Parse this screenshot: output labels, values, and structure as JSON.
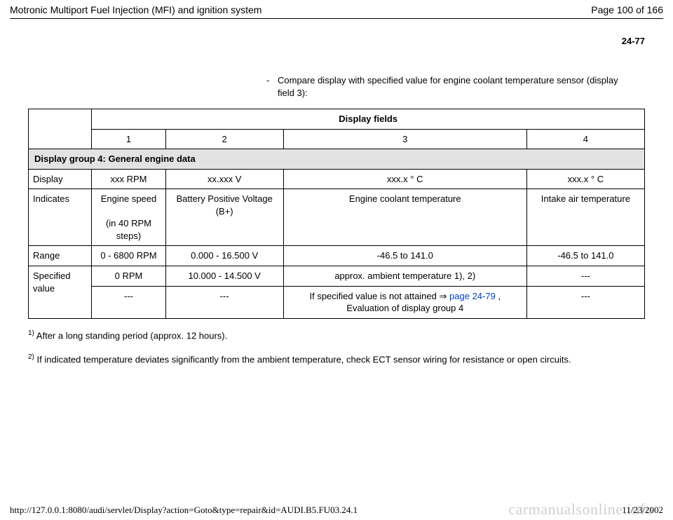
{
  "header": {
    "title": "Motronic Multiport Fuel Injection (MFI) and ignition system",
    "page_of": "Page 100 of 166"
  },
  "page_ref": "24-77",
  "instruction": {
    "dash": "-",
    "text": "Compare display with specified value for engine coolant temperature sensor (display field 3):"
  },
  "table": {
    "display_fields_label": "Display fields",
    "columns": {
      "c1": "1",
      "c2": "2",
      "c3": "3",
      "c4": "4"
    },
    "group_row": "Display group 4: General engine data",
    "rows": {
      "display": {
        "label": "Display",
        "c1": "xxx RPM",
        "c2": "xx.xxx V",
        "c3": "xxx.x  ° C",
        "c4": "xxx.x  ° C"
      },
      "indicates": {
        "label": "Indicates",
        "c1_line1": "Engine speed",
        "c1_line2": "(in 40 RPM steps)",
        "c2": "Battery Positive Voltage (B+)",
        "c3": "Engine coolant temperature",
        "c4": "Intake air temperature"
      },
      "range": {
        "label": "Range",
        "c1": "0 - 6800 RPM",
        "c2": "0.000 - 16.500 V",
        "c3": "-46.5 to 141.0",
        "c4": "-46.5 to 141.0"
      },
      "specified": {
        "label": "Specified value",
        "c1": "0 RPM",
        "c2": "10.000 - 14.500 V",
        "c3": "approx. ambient temperature 1), 2)",
        "c4": "---"
      },
      "specified2": {
        "c1": "---",
        "c2": "---",
        "c3_pre": "If specified value is not attained  ",
        "c3_link": "page 24-79",
        "c3_post": " , Evaluation of display group 4",
        "c4": "---"
      }
    }
  },
  "footnotes": {
    "f1_num": "1)",
    "f1_text": " After a long standing period (approx. 12 hours).",
    "f2_num": "2)",
    "f2_text": " If indicated temperature deviates significantly from the ambient temperature, check ECT sensor wiring for resistance or open circuits."
  },
  "footer": {
    "url": "http://127.0.0.1:8080/audi/servlet/Display?action=Goto&type=repair&id=AUDI.B5.FU03.24.1",
    "date": "11/23/2002"
  },
  "watermark": "carmanualsonline.info",
  "arrow_glyph": "⇒"
}
